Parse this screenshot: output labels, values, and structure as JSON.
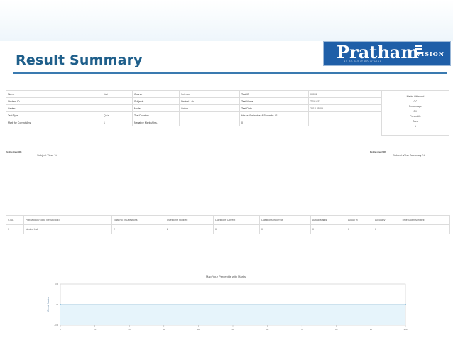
{
  "slide": {
    "title": "Result Summary",
    "logo": {
      "main": "Pratham",
      "suffix": "VISION",
      "tagline": "BE TO BIG IT SOLUTIONS"
    }
  },
  "info_table": [
    [
      "Name",
      "Yati ",
      "Course",
      "Science",
      "Test ID",
      "00006"
    ],
    [
      "Student ID",
      "",
      "Subjects",
      "Neutral Lab",
      "Test Name",
      "TEM 023"
    ],
    [
      "Center",
      "",
      "Mode",
      "Online",
      "Test Date",
      "2014-05-05"
    ],
    [
      "Test Type",
      "Quiz",
      "Test Duration",
      "",
      "Hours: 0 minutes: 4 Seconds: 51",
      ""
    ],
    [
      "Mark for Correct Ans.",
      "1",
      "Negative Marks/Qns.",
      "",
      "0",
      ""
    ]
  ],
  "marks_box": [
    "Marks Obtained",
    "0.0",
    "Percentage",
    "0%",
    "Percentile",
    "",
    "Rank",
    "1"
  ],
  "charts": {
    "left_legend": "Positive Area (100)",
    "left_title": "Subject Wise %",
    "right_legend": "Positive Area (100)",
    "right_title": "Subject Wise Accuracy %"
  },
  "subjects_table": {
    "headers": [
      "S.No.",
      "Pub/Module/Topic (Or Section)",
      "Total No of Questions",
      "Questions Skipped",
      "Questions Correct",
      "Questions Incorrect",
      "Actual Marks",
      "Actual %",
      "Accuracy",
      "Time Taken(Minutes)"
    ],
    "rows": [
      [
        "1",
        "Neutral Lab",
        "2",
        "2",
        "0",
        "0",
        "0",
        "0",
        "0",
        ""
      ]
    ]
  },
  "chart_data": {
    "type": "area",
    "title": "Map Your Percentile with Marks",
    "ylabel": "Cumul. Marks",
    "xlabel": "",
    "x_ticks": [
      "0",
      "10",
      "20",
      "30",
      "40",
      "50",
      "60",
      "70",
      "80",
      "90",
      "100"
    ],
    "y_ticks": [
      "0.6",
      "0",
      "-0.6"
    ],
    "xlim": [
      0,
      100
    ],
    "ylim": [
      -0.6,
      0.6
    ],
    "series": [
      {
        "x": [
          0,
          100
        ],
        "values": [
          0,
          0
        ]
      }
    ],
    "fill_color": "#e6f4fb",
    "line_color": "#7fb7d8",
    "grid": true
  }
}
